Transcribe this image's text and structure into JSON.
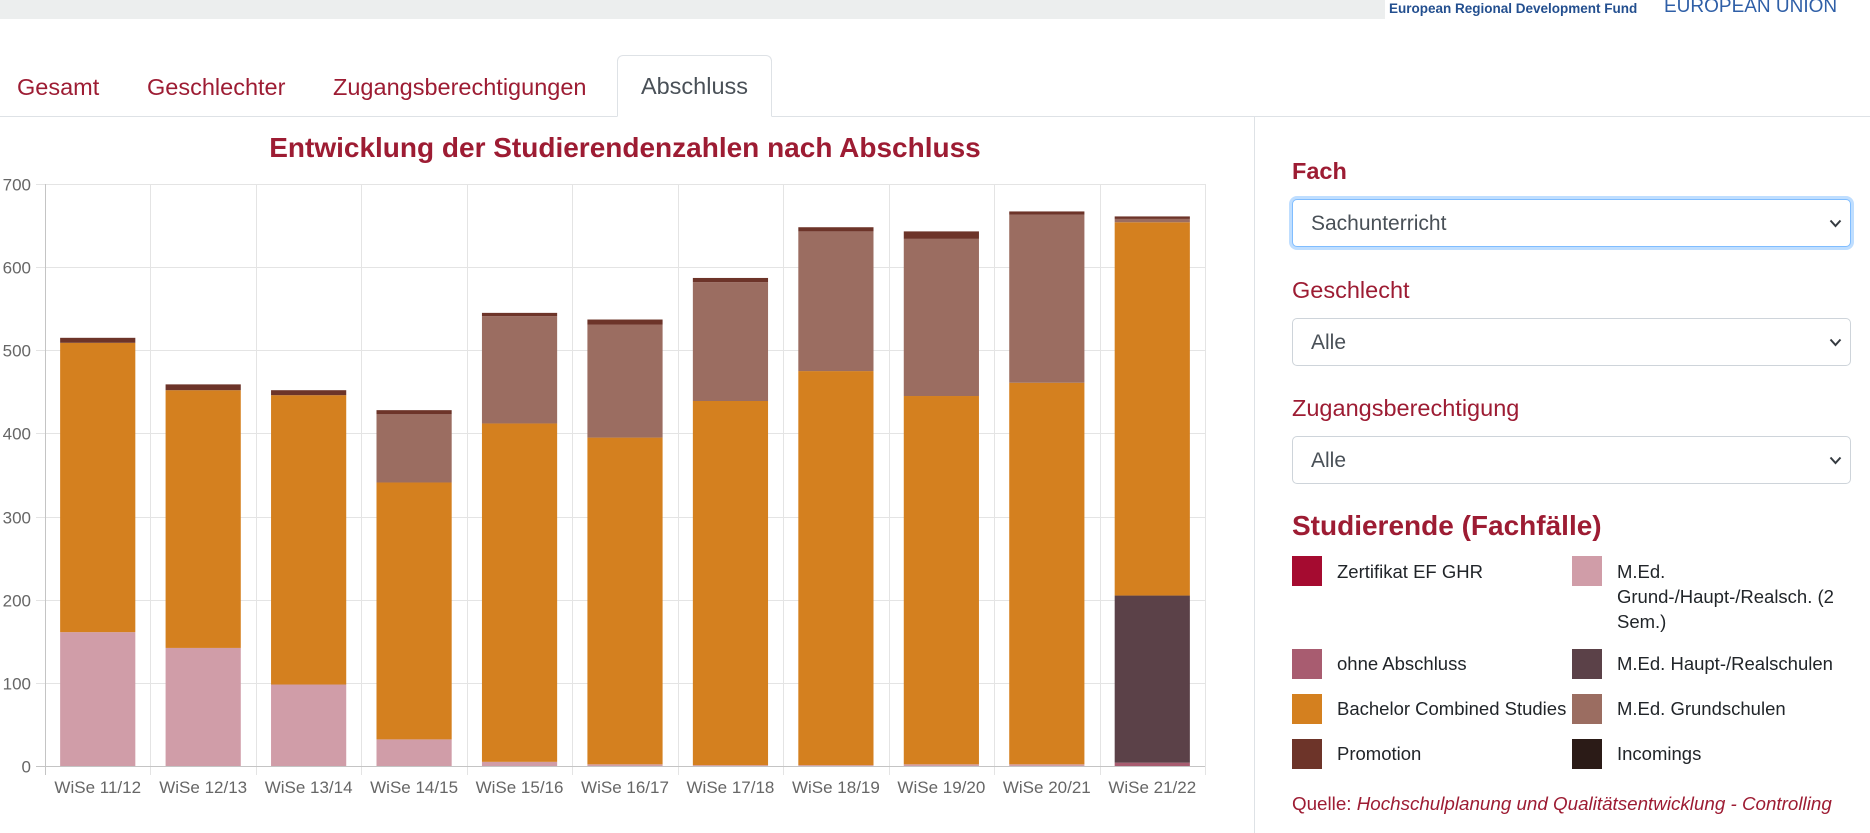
{
  "header": {
    "erdf_text": "European Regional Development Fund",
    "eu_text": "EUROPEAN UNION"
  },
  "tabs": [
    {
      "label": "Gesamt"
    },
    {
      "label": "Geschlechter"
    },
    {
      "label": "Zugangsberechtigungen"
    },
    {
      "label": "Abschluss",
      "active": true
    }
  ],
  "filters": {
    "fach": {
      "label": "Fach",
      "value": "Sachunterricht"
    },
    "geschlecht": {
      "label": "Geschlecht",
      "value": "Alle"
    },
    "zugang": {
      "label": "Zugangsberechtigung",
      "value": "Alle"
    }
  },
  "legend": {
    "title": "Studierende (Fachfälle)"
  },
  "source": {
    "prefix": "Quelle: ",
    "link": "Hochschulplanung und Qualitätsentwicklung - Controlling"
  },
  "colors": {
    "accent": "#9d1c33",
    "active_tab_text": "#495057",
    "focus_border": "#80bdff"
  },
  "chart_data": {
    "type": "bar",
    "stacked": true,
    "title": "Entwicklung der Studierendenzahlen nach Abschluss",
    "xlabel": "",
    "ylabel": "",
    "ylim": [
      0,
      700
    ],
    "yticks": [
      0,
      100,
      200,
      300,
      400,
      500,
      600,
      700
    ],
    "grid": true,
    "legend_position": "right",
    "categories": [
      "WiSe 11/12",
      "WiSe 12/13",
      "WiSe 13/14",
      "WiSe 14/15",
      "WiSe 15/16",
      "WiSe 16/17",
      "WiSe 17/18",
      "WiSe 18/19",
      "WiSe 19/20",
      "WiSe 20/21",
      "WiSe 21/22"
    ],
    "series": [
      {
        "name": "Zertifikat EF GHR",
        "color": "#a50b30",
        "values": [
          0,
          0,
          0,
          0,
          0,
          0,
          0,
          0,
          0,
          0,
          0
        ]
      },
      {
        "name": "M.Ed. Grund-/Haupt-/Realsch. (2 Sem.)",
        "color": "#d09da8",
        "values": [
          161,
          142,
          98,
          32,
          5,
          2,
          1,
          1,
          2,
          2,
          0
        ]
      },
      {
        "name": "ohne Abschluss",
        "color": "#a85c70",
        "values": [
          0,
          0,
          0,
          0,
          0,
          0,
          0,
          0,
          0,
          0,
          4
        ]
      },
      {
        "name": "M.Ed. Haupt-/Realschulen",
        "color": "#5b4148",
        "values": [
          0,
          0,
          0,
          0,
          0,
          0,
          0,
          0,
          0,
          0,
          201
        ]
      },
      {
        "name": "Bachelor Combined Studies",
        "color": "#d4801f",
        "values": [
          348,
          310,
          348,
          309,
          407,
          393,
          438,
          474,
          443,
          459,
          449
        ]
      },
      {
        "name": "M.Ed. Grundschulen",
        "color": "#9b6d61",
        "values": [
          0,
          0,
          0,
          82,
          129,
          136,
          143,
          168,
          189,
          202,
          4
        ]
      },
      {
        "name": "Promotion",
        "color": "#6d3429",
        "values": [
          6,
          7,
          6,
          5,
          4,
          6,
          5,
          5,
          9,
          4,
          3
        ]
      },
      {
        "name": "Incomings",
        "color": "#2b1b17",
        "values": [
          0,
          0,
          0,
          0,
          0,
          0,
          0,
          0,
          0,
          0,
          0
        ]
      }
    ]
  }
}
